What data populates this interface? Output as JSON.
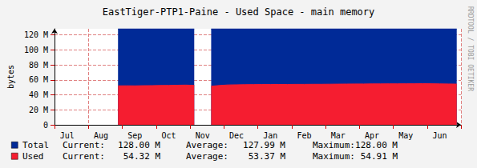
{
  "chart_data": {
    "type": "area",
    "title": "EastTiger-PTP1-Paine - Used Space - main memory",
    "y_label": "bytes",
    "annotations": [
      "RRDTOOL / TOBI OETIKER"
    ],
    "categories": [
      null,
      "Jul",
      null,
      null,
      null,
      "Aug",
      null,
      null,
      null,
      "Sep",
      null,
      null,
      null,
      "Oct",
      null,
      null,
      null,
      "Nov",
      null,
      null,
      null,
      "Dec",
      null,
      null,
      null,
      "Jan",
      null,
      null,
      null,
      "Feb",
      null,
      null,
      null,
      "Mar",
      null,
      null,
      null,
      "Apr",
      null,
      null,
      null,
      "May",
      null,
      null,
      null,
      "Jun",
      null,
      null
    ],
    "ylim": [
      0,
      128000000
    ],
    "yticks": [
      0,
      {
        "value": 20000000,
        "label": "20 M"
      },
      {
        "value": 40000000,
        "label": "40 M"
      },
      {
        "value": 60000000,
        "label": "60 M"
      },
      {
        "value": 80000000,
        "label": "80 M"
      },
      {
        "value": 100000000,
        "label": "100 M"
      },
      {
        "value": 120000000,
        "label": "120 M"
      }
    ],
    "grid": true,
    "stacked": false,
    "series": [
      {
        "name": "Total",
        "color": "#002a97",
        "values": [
          null,
          null,
          null,
          null,
          null,
          null,
          null,
          128000000,
          128000000,
          128000000,
          128000000,
          128000000,
          128000000,
          128000000,
          128000000,
          128000000,
          128000000,
          null,
          128000000,
          128000000,
          128000000,
          128000000,
          128000000,
          128000000,
          128000000,
          128000000,
          128000000,
          128000000,
          128000000,
          128000000,
          128000000,
          128000000,
          128000000,
          128000000,
          128000000,
          128000000,
          128000000,
          128000000,
          128000000,
          128000000,
          128000000,
          128000000,
          128000000,
          128000000,
          128000000,
          128000000,
          128000000,
          128000000
        ],
        "summary": [
          {
            "label": "Current:",
            "value": 128000000,
            "value_label": "128.00 M"
          },
          {
            "label": "Average:",
            "value": 127990000,
            "value_label": "127.99 M"
          },
          {
            "label": "Maximum:",
            "value": 128000000,
            "value_label": "128.00 M"
          }
        ]
      },
      {
        "name": "Used",
        "color": "#f51d30",
        "values": [
          null,
          null,
          null,
          null,
          null,
          null,
          null,
          52000000,
          52100000,
          52000000,
          52200000,
          52300000,
          52500000,
          52600000,
          52800000,
          53000000,
          52600000,
          null,
          51500000,
          52500000,
          53200000,
          53400000,
          53600000,
          53700000,
          53800000,
          53800000,
          53900000,
          53900000,
          54000000,
          54000000,
          54100000,
          54100000,
          54200000,
          54300000,
          54400000,
          54500000,
          54500000,
          54600000,
          54600000,
          54700000,
          54700000,
          54800000,
          54800000,
          54900000,
          54800000,
          54600000,
          54500000,
          54320000
        ],
        "summary": [
          {
            "label": "Current:",
            "value": 54320000,
            "value_label": "54.32 M"
          },
          {
            "label": "Average:",
            "value": 53370000,
            "value_label": "53.37 M"
          },
          {
            "label": "Maximum:",
            "value": 54910000,
            "value_label": "54.91 M"
          }
        ]
      }
    ]
  }
}
